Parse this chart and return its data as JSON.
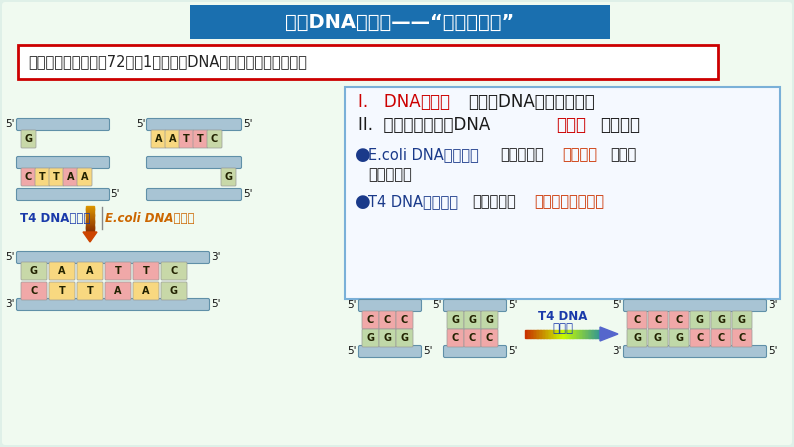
{
  "title": "二、DNA连接醂——“分子缝合针”",
  "title_bg": "#1a6faf",
  "title_color": "#ffffff",
  "task_text": "【任务二】阅读课本72页第1段，明确DNA连接醂的功能及分类。",
  "task_border": "#cc0000",
  "task_bg": "#ffffff",
  "bg_color": "#dff0e8",
  "content_bg": "#f0f7ff",
  "content_border": "#7ab0d8",
  "point1_black1": "I.   DNA",
  "point1_red": "连接醂",
  "point1_black2": "能够将DNA片段连接起来",
  "point2_black1": "II.  基因工程常用的DNA",
  "point2_red": "连接醂",
  "point2_black2": "有两种：",
  "b1_blue": "E.coli DNA连接醂：",
  "b1_black1": "连接互补的",
  "b1_red": "黏性末端",
  "b1_black2": "，不能",
  "b1_black3": "连接平末端",
  "b2_blue": "T4 DNA连接醂：",
  "b2_black1": "连接互补的",
  "b2_red": "黏性末端和平末端",
  "t4_label_blue": "T4 DNA连接醂",
  "ecoli_label_orange": "E.coli DNA连接醂",
  "arrow_t4_1": "T4 DNA",
  "arrow_t4_2": "连接醂"
}
